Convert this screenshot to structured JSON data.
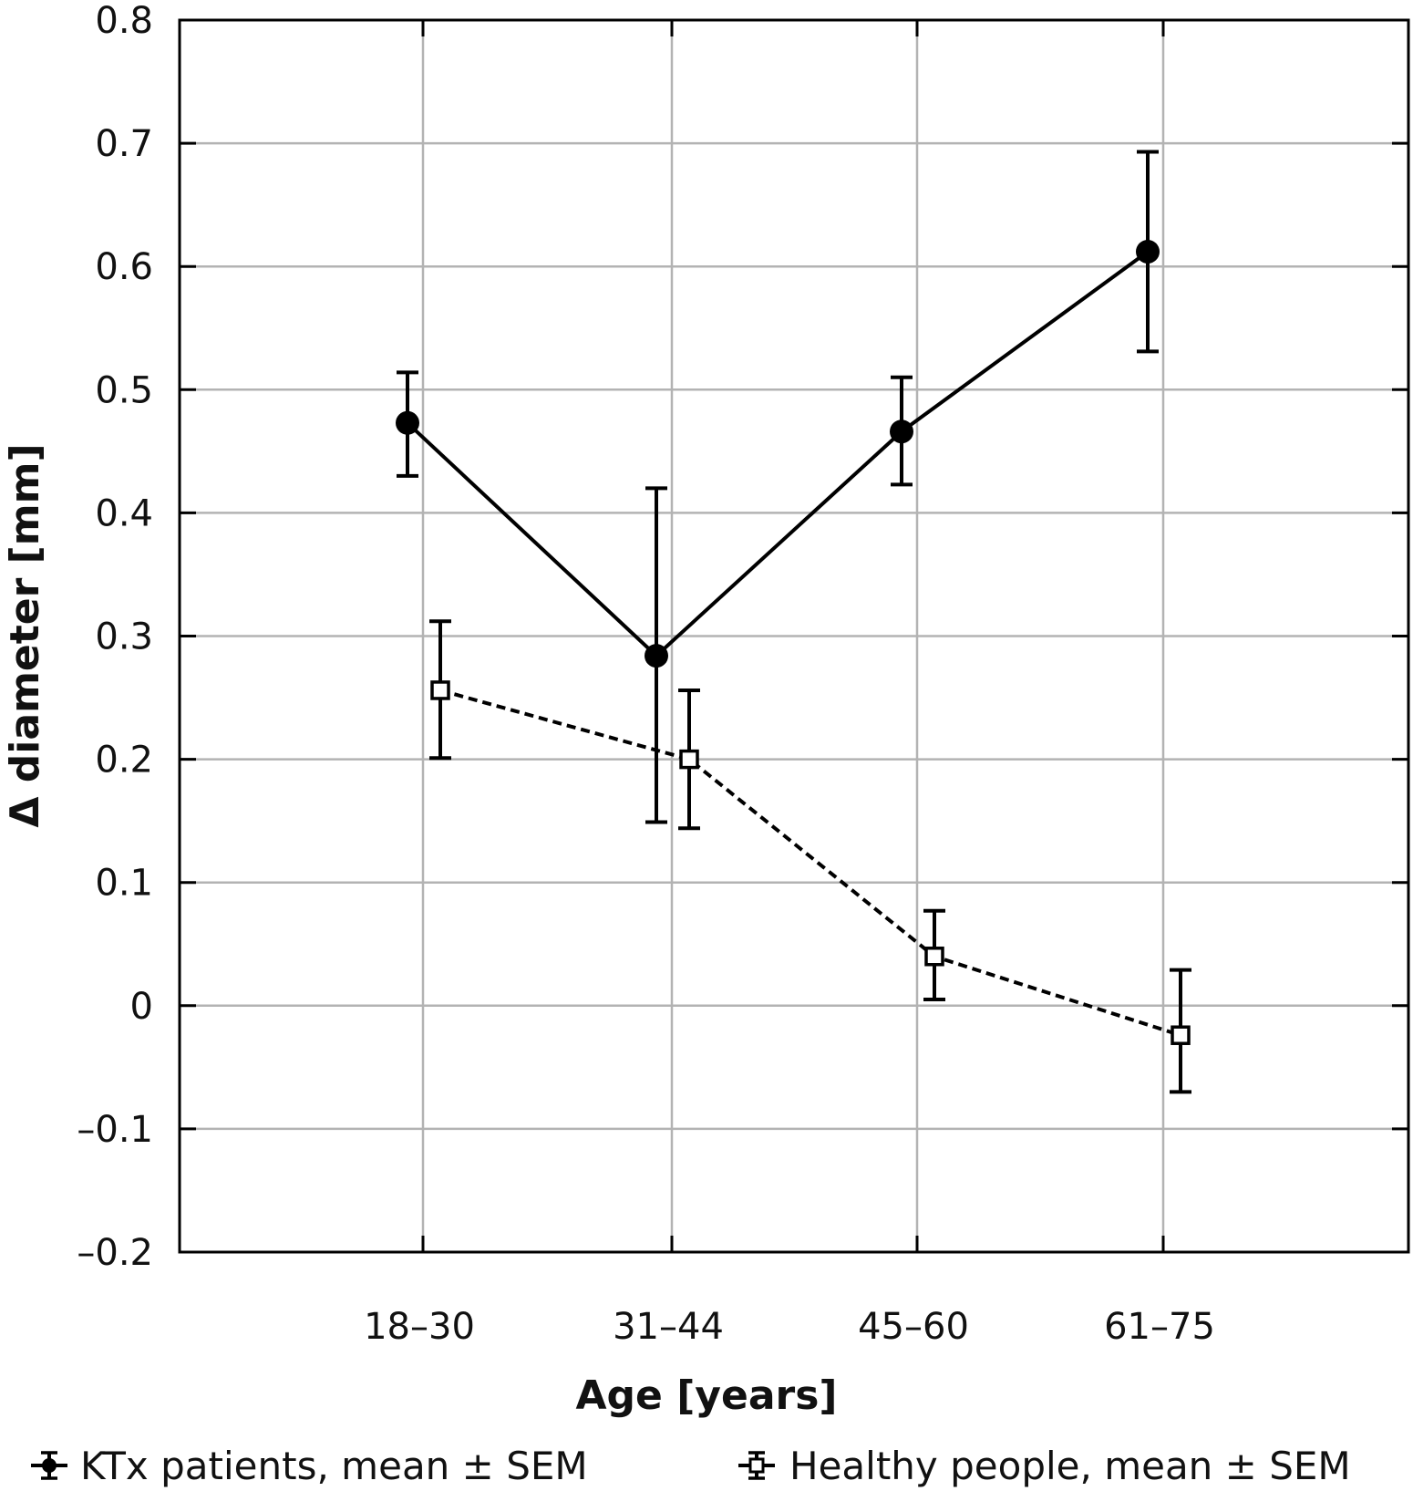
{
  "chart_data": {
    "type": "line",
    "xlabel": "Age [years]",
    "ylabel": "Δ diameter [mm]",
    "categories": [
      "18–30",
      "31–44",
      "45–60",
      "61–75"
    ],
    "ylim": [
      -0.2,
      0.8
    ],
    "yticks": [
      -0.2,
      -0.1,
      0,
      0.1,
      0.2,
      0.3,
      0.4,
      0.5,
      0.6,
      0.7,
      0.8
    ],
    "ytick_labels": [
      "–0.2",
      "–0.1",
      "0",
      "0.1",
      "0.2",
      "0.3",
      "0.4",
      "0.5",
      "0.6",
      "0.7",
      "0.8"
    ],
    "grid": true,
    "legend_position": "bottom",
    "series": [
      {
        "name": "KTx patients, mean ± SEM",
        "marker": "filled-circle",
        "line_style": "solid",
        "color": "#000000",
        "values": [
          0.473,
          0.284,
          0.466,
          0.612
        ],
        "err_low": [
          0.43,
          0.149,
          0.423,
          0.531
        ],
        "err_high": [
          0.514,
          0.42,
          0.51,
          0.693
        ]
      },
      {
        "name": "Healthy people, mean ± SEM",
        "marker": "open-square",
        "line_style": "dashed",
        "color": "#000000",
        "values": [
          0.256,
          0.2,
          0.04,
          -0.024
        ],
        "err_low": [
          0.201,
          0.144,
          0.005,
          -0.07
        ],
        "err_high": [
          0.312,
          0.256,
          0.077,
          0.029
        ]
      }
    ]
  }
}
